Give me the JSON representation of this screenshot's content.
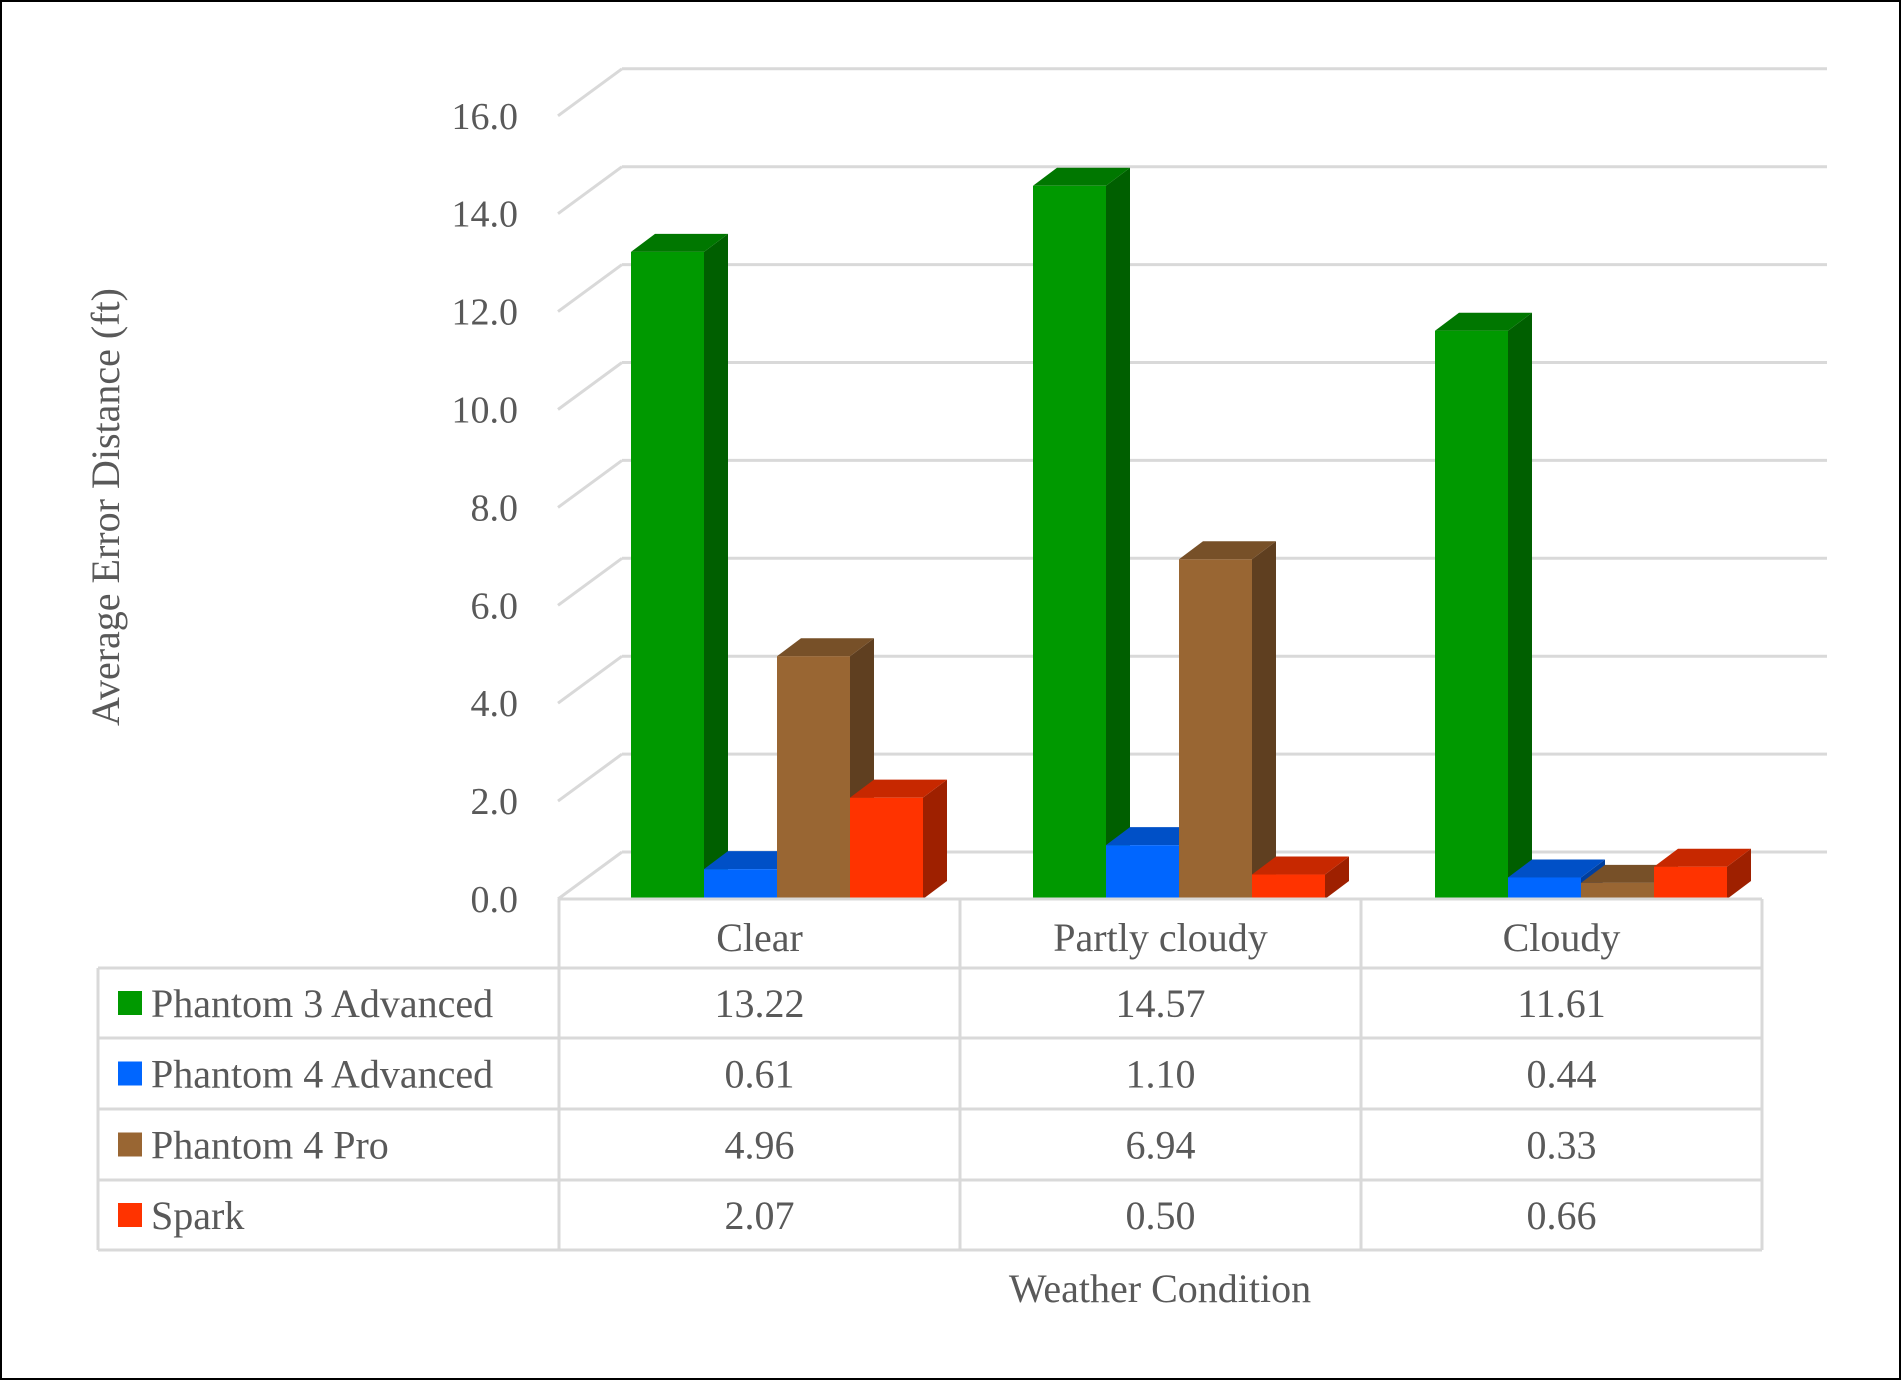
{
  "chart_data": {
    "type": "bar",
    "style": "3d-clustered-column-with-data-table",
    "title": "",
    "xlabel": "Weather Condition",
    "ylabel": "Average Error Distance (ft)",
    "ylim": [
      0,
      16
    ],
    "yticks": [
      "0.0",
      "2.0",
      "4.0",
      "6.0",
      "8.0",
      "10.0",
      "12.0",
      "14.0",
      "16.0"
    ],
    "grid": true,
    "legend": "data-table-left",
    "categories": [
      "Clear",
      "Partly cloudy",
      "Cloudy"
    ],
    "series": [
      {
        "name": "Phantom 3 Advanced",
        "color": "#009900",
        "values": [
          13.22,
          14.57,
          11.61
        ],
        "labels": [
          "13.22",
          "14.57",
          "11.61"
        ]
      },
      {
        "name": "Phantom 4 Advanced",
        "color": "#0066FF",
        "values": [
          0.61,
          1.1,
          0.44
        ],
        "labels": [
          "0.61",
          "1.10",
          "0.44"
        ]
      },
      {
        "name": "Phantom 4 Pro",
        "color": "#996633",
        "values": [
          4.96,
          6.94,
          0.33
        ],
        "labels": [
          "4.96",
          "6.94",
          "0.33"
        ]
      },
      {
        "name": "Spark",
        "color": "#FF3300",
        "values": [
          2.07,
          0.5,
          0.66
        ],
        "labels": [
          "2.07",
          "0.50",
          "0.66"
        ]
      }
    ]
  }
}
